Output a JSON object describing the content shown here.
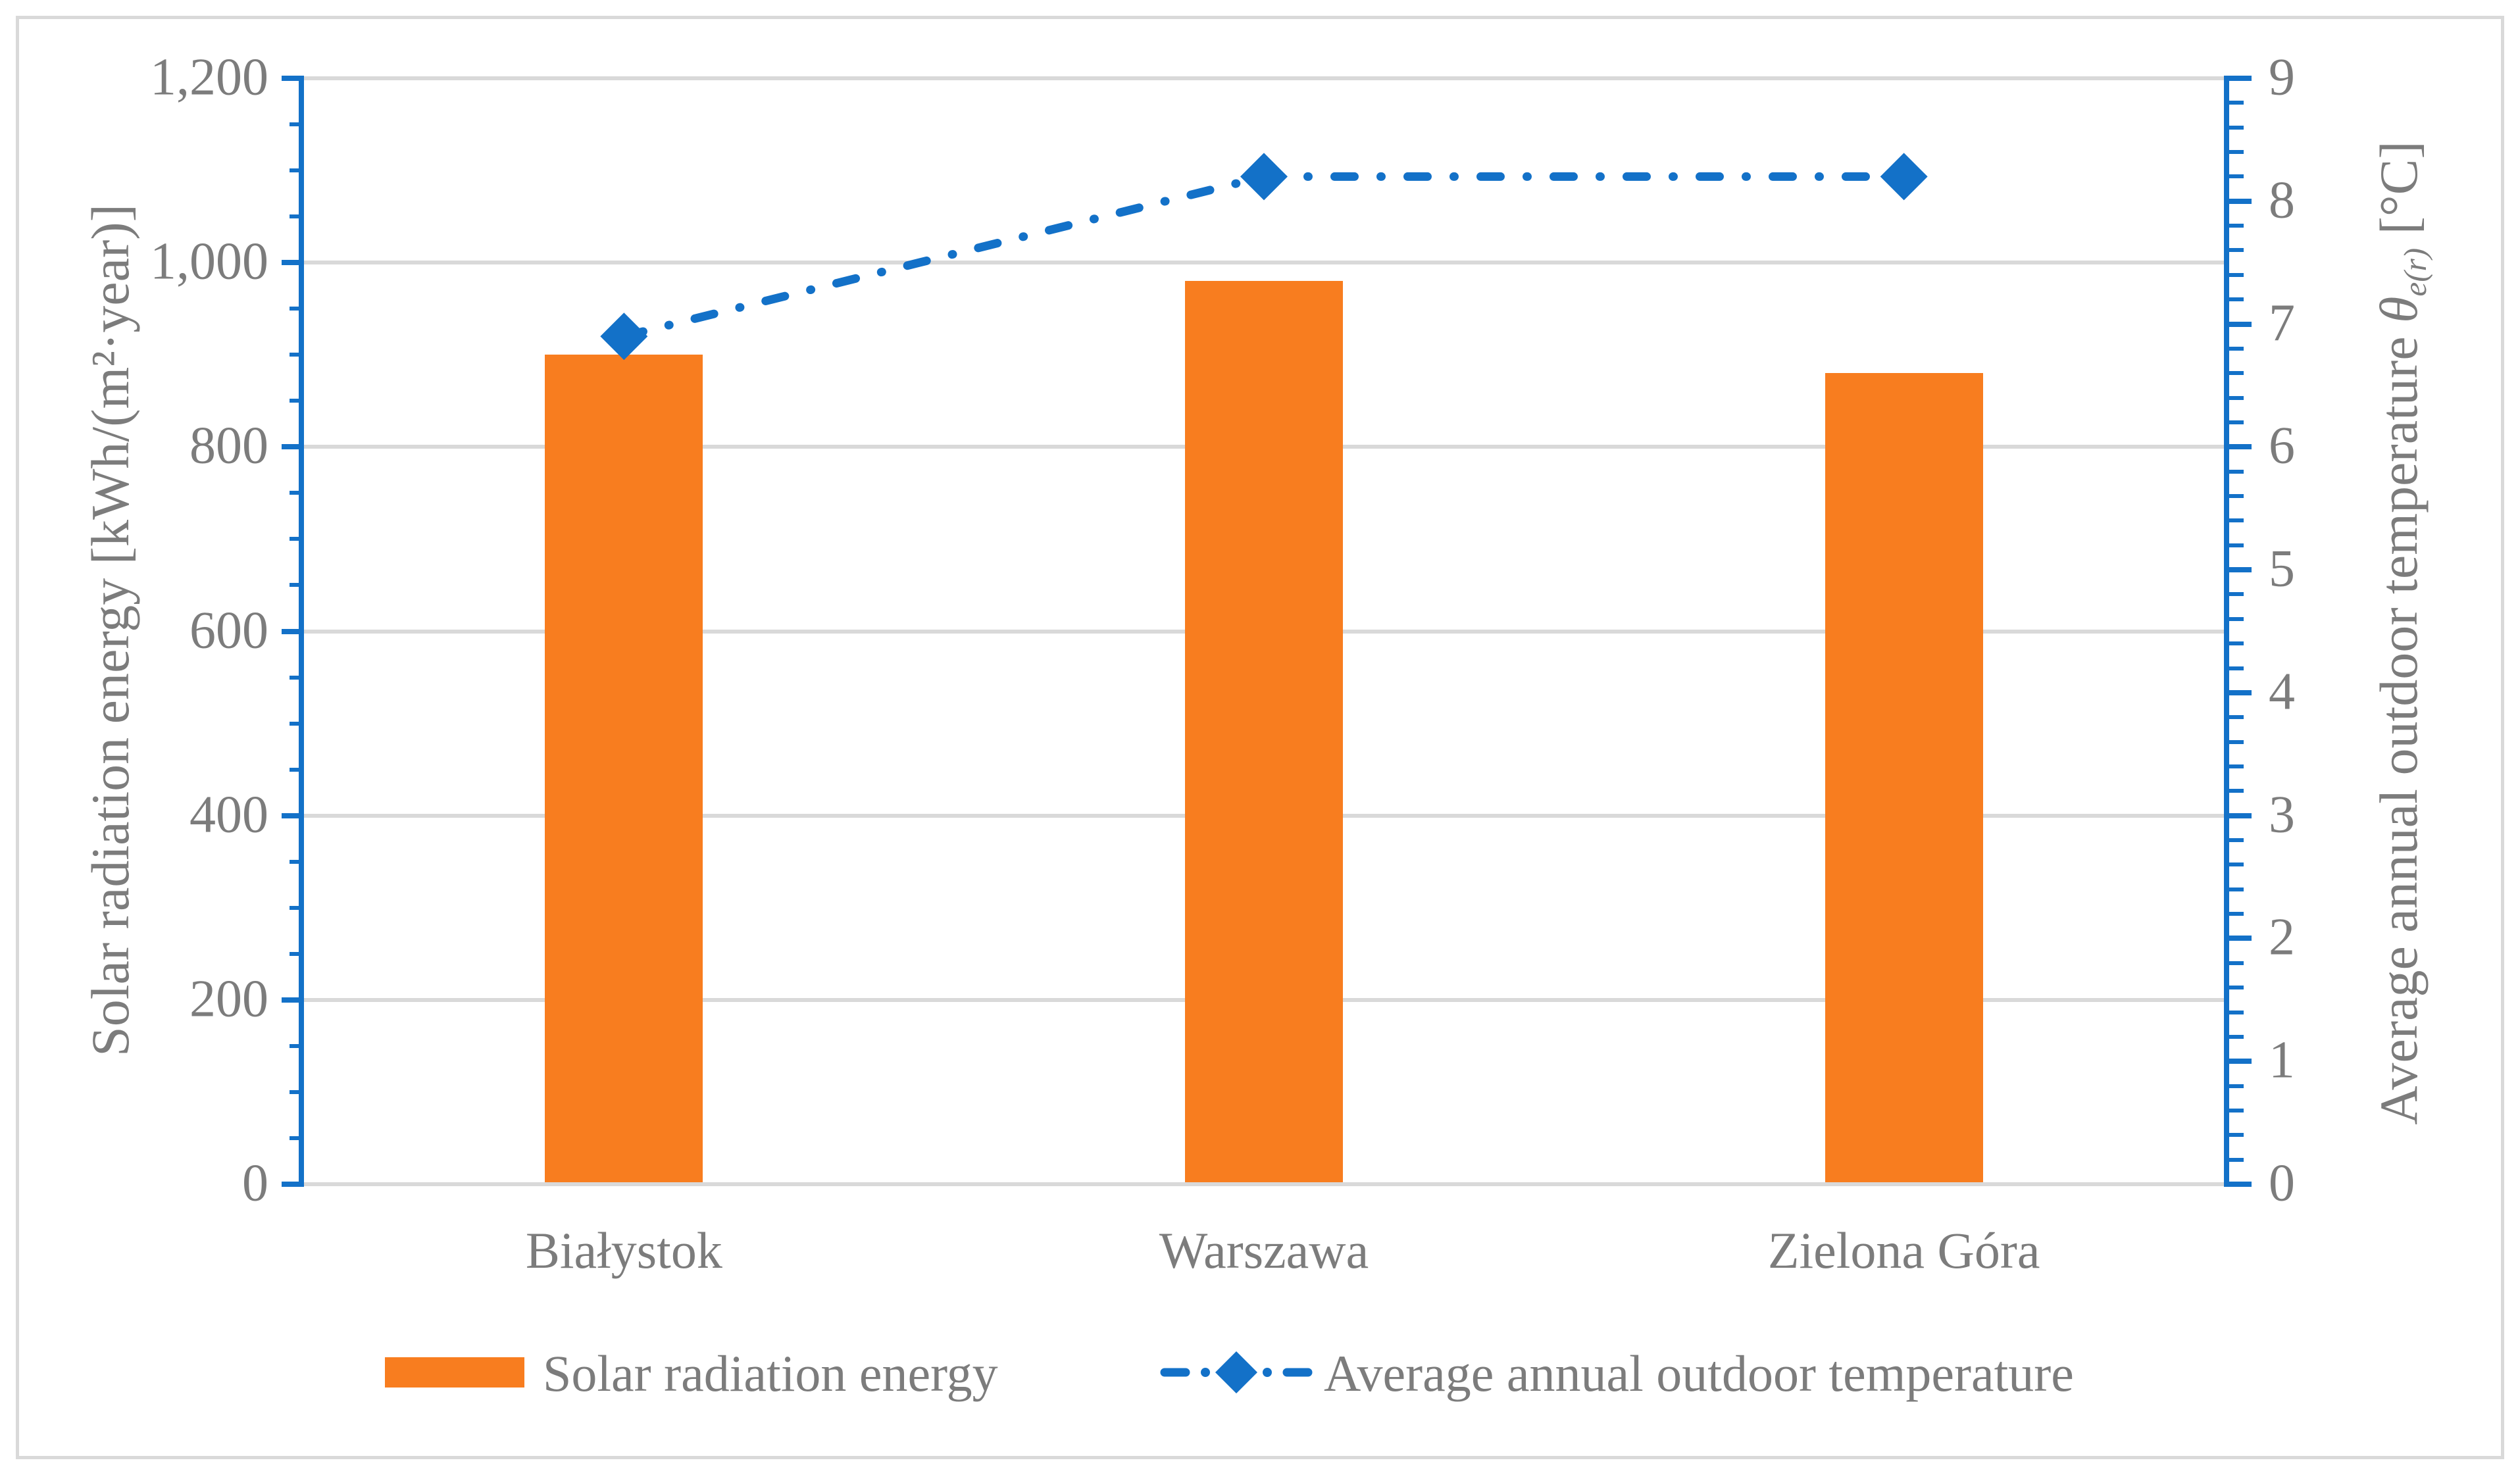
{
  "chart_data": {
    "type": "bar",
    "combo": "bar+line dual axis",
    "categories": [
      "Białystok",
      "Warszawa",
      "Zielona Góra"
    ],
    "series": [
      {
        "name": "Solar radiation energy",
        "type": "bar",
        "axis": "left",
        "values": [
          900,
          980,
          880
        ],
        "color": "#F87D1F"
      },
      {
        "name": "Average annual outdoor temperature",
        "type": "line",
        "axis": "right",
        "values": [
          6.9,
          8.2,
          8.2
        ],
        "color": "#1371C8",
        "marker": "diamond",
        "line_style": "dash-dot"
      }
    ],
    "left_axis": {
      "title": "Solar radiation energy  [kWh/(m²·year)]",
      "min": 0,
      "max": 1200,
      "major": 200,
      "minor": 50,
      "tick_labels": [
        "0",
        "200",
        "400",
        "600",
        "800",
        "1,000",
        "1,200"
      ]
    },
    "right_axis": {
      "title_prefix": "Average annual outdoor temperature ",
      "title_symbol": "θ",
      "title_subscript": "e(r)",
      "title_suffix": " [°C]",
      "min": 0,
      "max": 9,
      "major": 1,
      "minor": 0.2,
      "tick_labels": [
        "0",
        "1",
        "2",
        "3",
        "4",
        "5",
        "6",
        "7",
        "8",
        "9"
      ]
    },
    "legend": {
      "position": "bottom",
      "items": [
        {
          "label": "Solar radiation energy",
          "swatch": "bar"
        },
        {
          "label": "Average annual outdoor temperature",
          "swatch": "dash-dot-diamond"
        }
      ]
    },
    "grid": "horizontal major gridlines on",
    "colors": {
      "bar": "#F87D1F",
      "line": "#1371C8",
      "grid": "#D9D9D9",
      "border": "#D9D9D9",
      "text": "#7C7C7C",
      "background": "#FFFFFF"
    }
  }
}
